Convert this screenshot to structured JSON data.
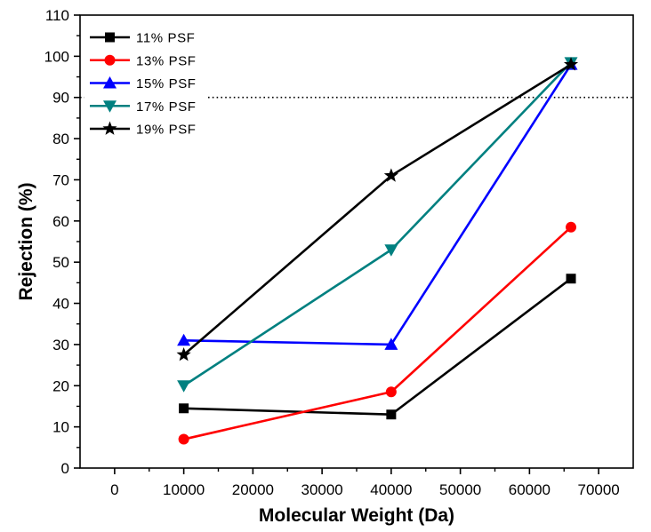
{
  "chart_data": {
    "type": "line",
    "xlabel": "Molecular Weight (Da)",
    "ylabel": "Rejection (%)",
    "xlim": [
      -5000,
      75000
    ],
    "ylim": [
      0,
      110
    ],
    "xticks": [
      0,
      10000,
      20000,
      30000,
      40000,
      50000,
      60000,
      70000
    ],
    "yticks": [
      0,
      10,
      20,
      30,
      40,
      50,
      60,
      70,
      80,
      90,
      100,
      110
    ],
    "x": [
      10000,
      40000,
      66000
    ],
    "series": [
      {
        "name": "11% PSF",
        "color": "#000000",
        "marker": "square",
        "values": [
          14.5,
          13,
          46
        ]
      },
      {
        "name": "13% PSF",
        "color": "#ff0000",
        "marker": "circle",
        "values": [
          7,
          18.5,
          58.5
        ]
      },
      {
        "name": "15% PSF",
        "color": "#0000ff",
        "marker": "triangle-up",
        "values": [
          31,
          30,
          98
        ]
      },
      {
        "name": "17% PSF",
        "color": "#008080",
        "marker": "triangle-down",
        "values": [
          20,
          53,
          98.5
        ]
      },
      {
        "name": "19% PSF",
        "color": "#000000",
        "marker": "star",
        "values": [
          27.5,
          71,
          98
        ]
      }
    ],
    "reference_lines": [
      {
        "y": 90,
        "style": "dotted",
        "color": "#000000"
      }
    ],
    "legend": "top-left",
    "grid": false
  }
}
